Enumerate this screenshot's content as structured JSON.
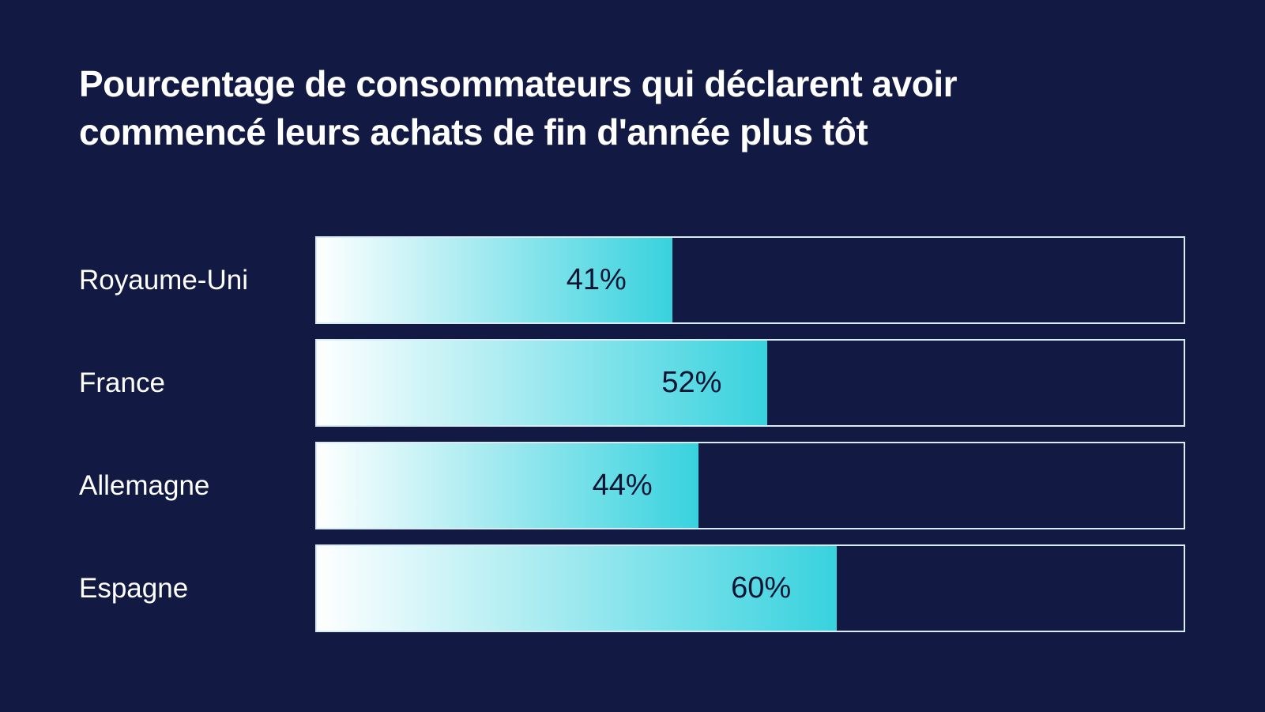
{
  "title": "Pourcentage de consommateurs qui déclarent avoir commencé leurs achats de fin d'année plus tôt",
  "chart_data": {
    "type": "bar",
    "orientation": "horizontal",
    "title": "Pourcentage de consommateurs qui déclarent avoir commencé leurs achats de fin d'année plus tôt",
    "categories": [
      "Royaume-Uni",
      "France",
      "Allemagne",
      "Espagne"
    ],
    "values": [
      41,
      52,
      44,
      60
    ],
    "value_labels": [
      "41%",
      "52%",
      "44%",
      "60%"
    ],
    "xlim": [
      0,
      100
    ],
    "grid": false,
    "legend": false,
    "value_label_position": "inside-right",
    "colors": {
      "background": "#121a44",
      "bar_gradient_start": "#ffffff",
      "bar_gradient_end": "#38d2de",
      "track_border": "#d8ecf6",
      "value_text": "#0e1433",
      "label_text": "#ffffff",
      "title_text": "#ffffff"
    }
  }
}
